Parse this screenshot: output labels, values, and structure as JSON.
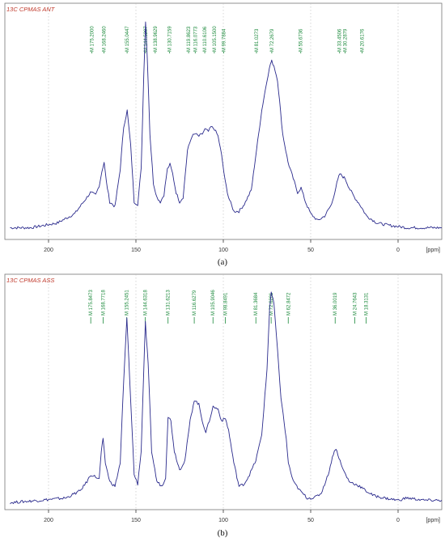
{
  "colors": {
    "spectrum": "#2a2a8c",
    "peak_label": "#1c8a3c",
    "title": "#c0392b",
    "axis": "#333333",
    "grid": "#bbbbbb"
  },
  "captions": {
    "a": "(a)",
    "b": "(b)"
  },
  "chart_data": [
    {
      "type": "line",
      "title": "13C CPMAS ANT",
      "xlabel": "[ppm]",
      "ylabel": "",
      "x_reversed": true,
      "xlim": [
        225,
        -25
      ],
      "x_ticks": [
        200,
        150,
        100,
        50,
        0
      ],
      "grid": "vertical dotted",
      "peak_labels": [
        "M 175.2000",
        "M 168.2460",
        "M 155.0447",
        "M 144.5297",
        "M 138.9629",
        "M 130.7159",
        "M 119.8623",
        "M 116.0773",
        "M 110.6106",
        "M 105.1500",
        "M 99.7884",
        "M 81.0273",
        "M 72.2679",
        "M 55.6736",
        "M 33.4506",
        "M 30.2879",
        "M 20.6176"
      ],
      "x": [
        222,
        210,
        195,
        185,
        180,
        176,
        173,
        171,
        169.5,
        168.2,
        167,
        165,
        162,
        159,
        157,
        155,
        153,
        151,
        149,
        147,
        145.5,
        144.5,
        143.5,
        142,
        140,
        138,
        136,
        134,
        132,
        130.5,
        129,
        127,
        125,
        123,
        120.5,
        118,
        116,
        114,
        112,
        110.5,
        108.5,
        107,
        105,
        103,
        101,
        99,
        97,
        94,
        91,
        88,
        84,
        81,
        78,
        75,
        73,
        72.3,
        71,
        69,
        66,
        63,
        60,
        57.5,
        55.5,
        53,
        50,
        46,
        42,
        38,
        35,
        33.4,
        32,
        30.3,
        28,
        25,
        22,
        18,
        12,
        5,
        -5,
        -15,
        -25
      ],
      "y": [
        0.05,
        0.05,
        0.07,
        0.11,
        0.16,
        0.2,
        0.19,
        0.23,
        0.29,
        0.33,
        0.25,
        0.16,
        0.14,
        0.3,
        0.48,
        0.55,
        0.4,
        0.16,
        0.15,
        0.3,
        0.7,
        0.93,
        0.78,
        0.45,
        0.24,
        0.18,
        0.16,
        0.19,
        0.3,
        0.32,
        0.28,
        0.2,
        0.16,
        0.18,
        0.38,
        0.44,
        0.45,
        0.44,
        0.45,
        0.47,
        0.46,
        0.48,
        0.47,
        0.44,
        0.36,
        0.25,
        0.18,
        0.12,
        0.12,
        0.15,
        0.21,
        0.38,
        0.55,
        0.68,
        0.75,
        0.76,
        0.74,
        0.68,
        0.45,
        0.33,
        0.26,
        0.2,
        0.22,
        0.16,
        0.11,
        0.08,
        0.1,
        0.15,
        0.24,
        0.28,
        0.27,
        0.26,
        0.22,
        0.18,
        0.15,
        0.1,
        0.07,
        0.06,
        0.05,
        0.05,
        0.05
      ]
    },
    {
      "type": "line",
      "title": "13C CPMAS ASS",
      "xlabel": "[ppm]",
      "ylabel": "",
      "x_reversed": true,
      "xlim": [
        225,
        -25
      ],
      "x_ticks": [
        200,
        150,
        100,
        50,
        0
      ],
      "grid": "vertical dotted",
      "peak_labels": [
        "M 175.8473",
        "M 168.7718",
        "M 155.2451",
        "M 144.6318",
        "M 131.6213",
        "M 116.6279",
        "M 105.9046",
        "M 98.8491",
        "M 81.3684",
        "M 72.6281",
        "M 62.8472",
        "M 36.0019",
        "M 24.7643",
        "M 18.3131"
      ],
      "x": [
        222,
        205,
        190,
        182,
        178,
        175.8,
        173,
        171,
        169.8,
        168.8,
        167.5,
        165,
        162,
        159,
        157,
        155.2,
        153.5,
        151,
        149,
        147,
        145.5,
        144.6,
        143,
        141,
        138,
        135,
        133,
        131.6,
        130,
        128,
        125,
        122,
        119,
        116.6,
        114,
        112,
        110,
        108,
        105.9,
        103,
        101,
        98.8,
        97,
        94,
        91,
        88,
        85,
        81.4,
        78,
        75,
        73.5,
        72.6,
        71,
        69,
        67,
        64,
        62.8,
        60,
        56,
        52,
        48,
        44,
        40,
        37,
        36,
        35,
        32,
        28,
        24.8,
        22,
        18.3,
        14,
        8,
        0,
        -5,
        -15,
        -25
      ],
      "y": [
        0.03,
        0.04,
        0.05,
        0.08,
        0.12,
        0.15,
        0.14,
        0.13,
        0.25,
        0.3,
        0.2,
        0.12,
        0.1,
        0.2,
        0.55,
        0.82,
        0.55,
        0.15,
        0.11,
        0.25,
        0.6,
        0.8,
        0.62,
        0.25,
        0.12,
        0.1,
        0.14,
        0.4,
        0.38,
        0.25,
        0.17,
        0.21,
        0.38,
        0.47,
        0.45,
        0.38,
        0.33,
        0.38,
        0.44,
        0.43,
        0.38,
        0.39,
        0.34,
        0.2,
        0.1,
        0.11,
        0.15,
        0.21,
        0.32,
        0.6,
        0.86,
        0.93,
        0.88,
        0.68,
        0.48,
        0.3,
        0.2,
        0.12,
        0.08,
        0.05,
        0.05,
        0.07,
        0.15,
        0.24,
        0.26,
        0.25,
        0.18,
        0.12,
        0.11,
        0.1,
        0.08,
        0.06,
        0.05,
        0.04,
        0.05,
        0.04,
        0.04
      ]
    }
  ]
}
